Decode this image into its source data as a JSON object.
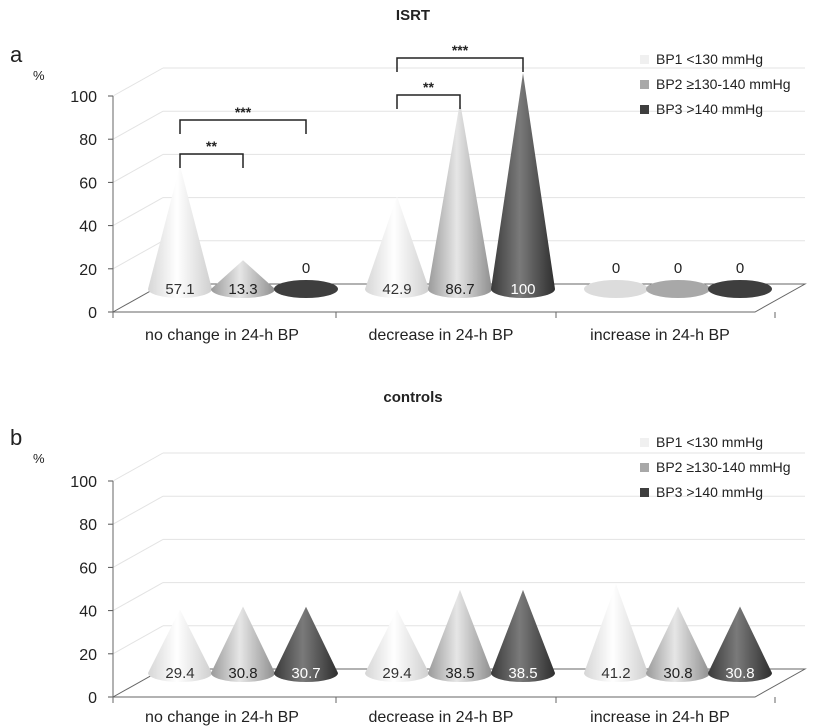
{
  "chart_data": [
    {
      "type": "bar",
      "panel": "a",
      "title": "ISRT",
      "unit": "%",
      "ylim": [
        0,
        100
      ],
      "yticks": [
        "0",
        "20",
        "40",
        "60",
        "80",
        "100"
      ],
      "categories": [
        "no change in 24-h BP",
        "decrease in 24-h BP",
        "increase in 24-h BP"
      ],
      "series": [
        {
          "name": "BP1 <130 mmHg",
          "values": [
            57.1,
            42.9,
            0
          ],
          "labels": [
            "57.1",
            "42.9",
            "0"
          ],
          "color": "#f2f2f2"
        },
        {
          "name": "BP2 ≥130-140 mmHg",
          "values": [
            13.3,
            86.7,
            0
          ],
          "labels": [
            "13.3",
            "86.7",
            "0"
          ],
          "color": "#b3b3b3"
        },
        {
          "name": "BP3 >140 mmHg",
          "values": [
            0,
            100,
            0
          ],
          "labels": [
            "0",
            "100",
            "0"
          ],
          "color": "#4d4d4d"
        }
      ],
      "significance": [
        {
          "category": 0,
          "from": 0,
          "to": 1,
          "text": "**"
        },
        {
          "category": 0,
          "from": 0,
          "to": 2,
          "text": "***"
        },
        {
          "category": 1,
          "from": 0,
          "to": 1,
          "text": "**"
        },
        {
          "category": 1,
          "from": 0,
          "to": 2,
          "text": "***"
        }
      ],
      "legend": "top-right"
    },
    {
      "type": "bar",
      "panel": "b",
      "title": "controls",
      "unit": "%",
      "ylim": [
        0,
        100
      ],
      "yticks": [
        "0",
        "20",
        "40",
        "60",
        "80",
        "100"
      ],
      "categories": [
        "no change in 24-h BP",
        "decrease in 24-h BP",
        "increase in 24-h BP"
      ],
      "series": [
        {
          "name": "BP1 <130 mmHg",
          "values": [
            29.4,
            29.4,
            41.2
          ],
          "labels": [
            "29.4",
            "29.4",
            "41.2"
          ],
          "color": "#f2f2f2"
        },
        {
          "name": "BP2 ≥130-140 mmHg",
          "values": [
            30.8,
            38.5,
            30.8
          ],
          "labels": [
            "30.8",
            "38.5",
            "30.8"
          ],
          "color": "#b3b3b3"
        },
        {
          "name": "BP3 >140 mmHg",
          "values": [
            30.7,
            38.5,
            30.8
          ],
          "labels": [
            "30.7",
            "38.5",
            "30.8"
          ],
          "color": "#4d4d4d"
        }
      ],
      "significance": [],
      "legend": "top-right"
    }
  ]
}
